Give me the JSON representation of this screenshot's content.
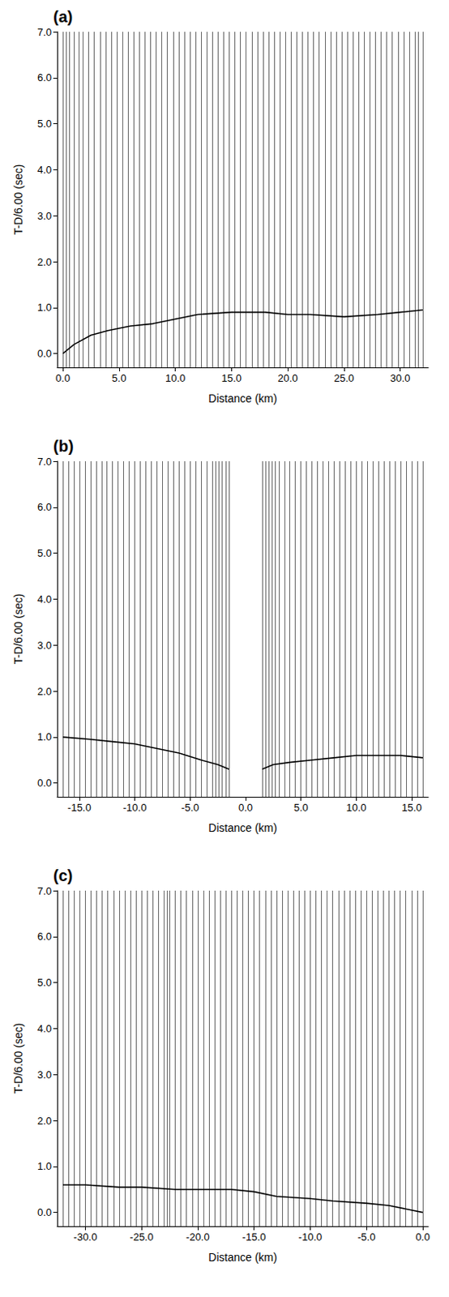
{
  "chart_data": [
    {
      "type": "seismic",
      "title": "(a)",
      "xlabel": "Distance (km)",
      "ylabel": "T-D/6.00 (sec)",
      "xlim": [
        -0.5,
        32.5
      ],
      "ylim": [
        -0.3,
        7.0
      ],
      "xticks": [
        {
          "value": 0,
          "label": "0.0"
        },
        {
          "value": 5,
          "label": "5.0"
        },
        {
          "value": 10,
          "label": "10.0"
        },
        {
          "value": 15,
          "label": "15.0"
        },
        {
          "value": 20,
          "label": "20.0"
        },
        {
          "value": 25,
          "label": "25.0"
        },
        {
          "value": 30,
          "label": "30.0"
        }
      ],
      "yticks": [
        {
          "value": 0,
          "label": "0.0"
        },
        {
          "value": 1,
          "label": "1.0"
        },
        {
          "value": 2,
          "label": "2.0"
        },
        {
          "value": 3,
          "label": "3.0"
        },
        {
          "value": 4,
          "label": "4.0"
        },
        {
          "value": 5,
          "label": "5.0"
        },
        {
          "value": 6,
          "label": "6.0"
        },
        {
          "value": 7,
          "label": "7.0"
        }
      ],
      "series": [
        {
          "type": "traces",
          "color": "#000000",
          "x": [
            0.0,
            0.3,
            0.6,
            1.0,
            1.4,
            1.8,
            2.3,
            2.8,
            3.3,
            3.8,
            4.3,
            4.8,
            5.3,
            5.8,
            6.3,
            6.8,
            7.3,
            7.8,
            8.3,
            8.8,
            9.3,
            9.8,
            10.3,
            10.8,
            11.3,
            11.8,
            12.3,
            12.8,
            13.3,
            13.8,
            14.3,
            14.8,
            15.3,
            15.8,
            16.3,
            16.8,
            17.3,
            17.8,
            18.3,
            18.8,
            19.3,
            19.8,
            20.3,
            20.8,
            21.3,
            21.8,
            22.3,
            22.8,
            23.3,
            23.8,
            24.3,
            24.8,
            25.3,
            25.8,
            26.3,
            26.8,
            27.3,
            27.8,
            28.3,
            28.8,
            29.3,
            29.8,
            30.3,
            30.8,
            31.3,
            31.6,
            32.0
          ]
        },
        {
          "type": "line",
          "color": "#000000",
          "x": [
            0,
            1,
            2.5,
            4,
            6,
            8,
            10,
            12,
            15,
            18,
            20,
            22,
            25,
            28,
            30,
            32
          ],
          "values": [
            0.0,
            0.2,
            0.4,
            0.5,
            0.6,
            0.65,
            0.75,
            0.85,
            0.9,
            0.9,
            0.85,
            0.85,
            0.8,
            0.85,
            0.9,
            0.95
          ]
        }
      ]
    },
    {
      "type": "seismic",
      "title": "(b)",
      "xlabel": "Distance (km)",
      "ylabel": "T-D/6.00 (sec)",
      "xlim": [
        -17,
        16.5
      ],
      "ylim": [
        -0.3,
        7.0
      ],
      "xticks": [
        {
          "value": -15,
          "label": "-15.0"
        },
        {
          "value": -10,
          "label": "-10.0"
        },
        {
          "value": -5,
          "label": "-5.0"
        },
        {
          "value": 0,
          "label": "0.0"
        },
        {
          "value": 5,
          "label": "5.0"
        },
        {
          "value": 10,
          "label": "10.0"
        },
        {
          "value": 15,
          "label": "15.0"
        }
      ],
      "yticks": [
        {
          "value": 0,
          "label": "0.0"
        },
        {
          "value": 1,
          "label": "1.0"
        },
        {
          "value": 2,
          "label": "2.0"
        },
        {
          "value": 3,
          "label": "3.0"
        },
        {
          "value": 4,
          "label": "4.0"
        },
        {
          "value": 5,
          "label": "5.0"
        },
        {
          "value": 6,
          "label": "6.0"
        },
        {
          "value": 7,
          "label": "7.0"
        }
      ],
      "series": [
        {
          "type": "traces",
          "color": "#000000",
          "x": [
            -16.5,
            -16.0,
            -15.5,
            -15.0,
            -14.5,
            -14.0,
            -13.5,
            -13.0,
            -12.5,
            -12.0,
            -11.5,
            -11.0,
            -10.5,
            -10.0,
            -9.5,
            -9.0,
            -8.5,
            -8.0,
            -7.5,
            -7.0,
            -6.5,
            -6.0,
            -5.5,
            -5.0,
            -4.5,
            -4.0,
            -3.5,
            -3.0,
            -2.7,
            -2.4,
            -2.1,
            -1.8,
            -1.5,
            1.5,
            1.8,
            2.1,
            2.4,
            2.7,
            3.0,
            3.5,
            4.0,
            4.5,
            5.0,
            5.5,
            6.0,
            6.5,
            7.0,
            7.5,
            8.0,
            8.5,
            9.0,
            9.5,
            10.0,
            10.5,
            11.0,
            11.5,
            12.0,
            12.5,
            13.0,
            13.5,
            14.0,
            14.5,
            15.0,
            15.5,
            16.0
          ]
        },
        {
          "type": "line",
          "color": "#000000",
          "x": [
            -16.5,
            -14,
            -12,
            -10,
            -8,
            -6,
            -4,
            -2.5,
            -1.5,
            0,
            1.5,
            2.5,
            4,
            6,
            8,
            10,
            12,
            14,
            16
          ],
          "values": [
            1.0,
            0.95,
            0.9,
            0.85,
            0.75,
            0.65,
            0.5,
            0.4,
            0.3,
            null,
            0.3,
            0.4,
            0.45,
            0.5,
            0.55,
            0.6,
            0.6,
            0.6,
            0.55
          ]
        }
      ]
    },
    {
      "type": "seismic",
      "title": "(c)",
      "xlabel": "Distance (km)",
      "ylabel": "T-D/6.00 (sec)",
      "xlim": [
        -32.5,
        0.5
      ],
      "ylim": [
        -0.3,
        7.0
      ],
      "xticks": [
        {
          "value": -30,
          "label": "-30.0"
        },
        {
          "value": -25,
          "label": "-25.0"
        },
        {
          "value": -20,
          "label": "-20.0"
        },
        {
          "value": -15,
          "label": "-15.0"
        },
        {
          "value": -10,
          "label": "-10.0"
        },
        {
          "value": -5,
          "label": "-5.0"
        },
        {
          "value": 0,
          "label": "0.0"
        }
      ],
      "yticks": [
        {
          "value": 0,
          "label": "0.0"
        },
        {
          "value": 1,
          "label": "1.0"
        },
        {
          "value": 2,
          "label": "2.0"
        },
        {
          "value": 3,
          "label": "3.0"
        },
        {
          "value": 4,
          "label": "4.0"
        },
        {
          "value": 5,
          "label": "5.0"
        },
        {
          "value": 6,
          "label": "6.0"
        },
        {
          "value": 7,
          "label": "7.0"
        }
      ],
      "series": [
        {
          "type": "traces",
          "color": "#000000",
          "x": [
            -32.0,
            -31.5,
            -31.0,
            -30.5,
            -30.0,
            -29.5,
            -29.0,
            -28.5,
            -28.0,
            -27.5,
            -27.0,
            -26.5,
            -26.0,
            -25.5,
            -25.0,
            -24.5,
            -24.0,
            -23.5,
            -23.0,
            -22.7,
            -22.5,
            -22.0,
            -21.5,
            -21.0,
            -20.5,
            -20.0,
            -19.5,
            -19.0,
            -18.5,
            -18.0,
            -17.5,
            -17.0,
            -16.5,
            -16.0,
            -15.5,
            -15.0,
            -14.5,
            -14.0,
            -13.5,
            -13.0,
            -12.5,
            -12.0,
            -11.5,
            -11.0,
            -10.5,
            -10.0,
            -9.5,
            -9.0,
            -8.5,
            -8.0,
            -7.5,
            -7.0,
            -6.5,
            -6.0,
            -5.5,
            -5.0,
            -4.5,
            -4.0,
            -3.5,
            -3.0,
            -2.5,
            -2.0,
            -1.5,
            -1.0,
            -0.5,
            0.0
          ]
        },
        {
          "type": "line",
          "color": "#000000",
          "x": [
            -32,
            -30,
            -27,
            -25,
            -22,
            -20,
            -17,
            -15,
            -13,
            -10,
            -8,
            -5,
            -3,
            -1,
            0
          ],
          "values": [
            0.6,
            0.6,
            0.55,
            0.55,
            0.5,
            0.5,
            0.5,
            0.45,
            0.35,
            0.3,
            0.25,
            0.2,
            0.15,
            0.05,
            0.0
          ]
        }
      ]
    }
  ]
}
